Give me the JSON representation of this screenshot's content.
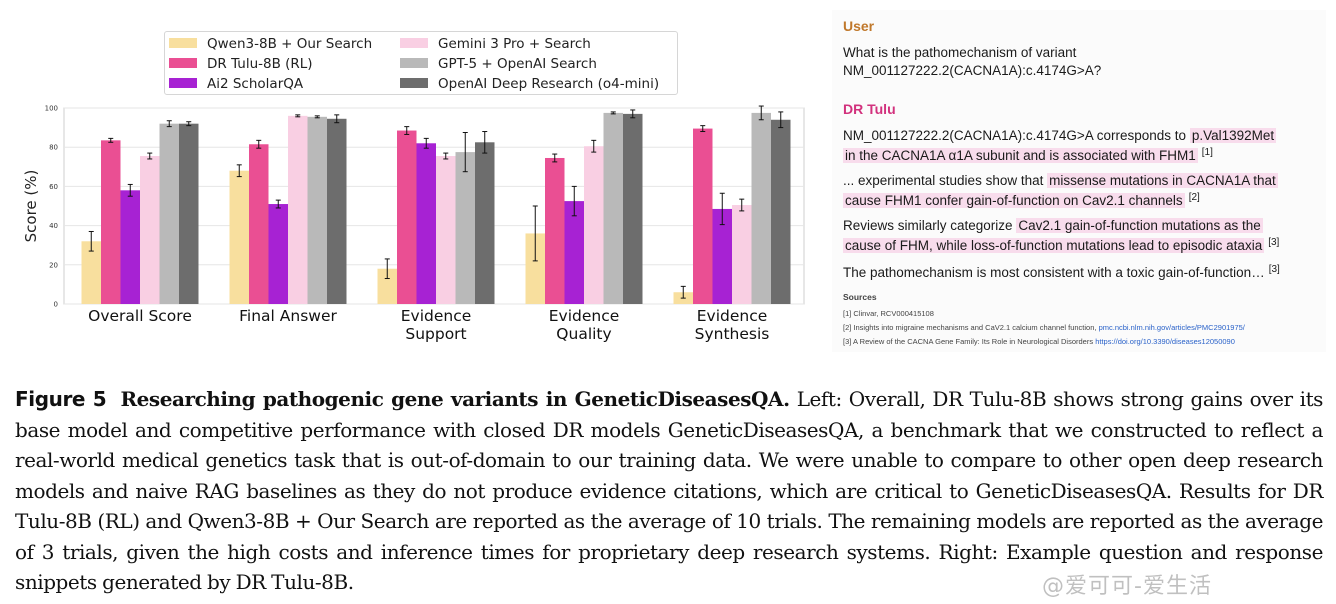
{
  "chart_data": {
    "type": "bar",
    "categories": [
      "Overall Score",
      "Final Answer",
      "Evidence\nSupport",
      "Evidence\nQuality",
      "Evidence\nSynthesis"
    ],
    "ylabel": "Score (%)",
    "ylim": [
      0,
      100
    ],
    "yticks": [
      0,
      20,
      40,
      60,
      80,
      100
    ],
    "grid": true,
    "legend_placement": "top-center",
    "series": [
      {
        "name": "Qwen3-8B + Our Search",
        "color": "#f8df9e",
        "values": [
          32,
          68,
          18,
          36,
          6
        ],
        "errors": [
          5,
          3,
          5,
          14,
          3
        ]
      },
      {
        "name": "DR Tulu-8B (RL)",
        "color": "#ea4f93",
        "values": [
          83.5,
          81.5,
          88.5,
          74.5,
          89.5
        ],
        "errors": [
          1,
          2,
          2,
          2,
          1.5
        ]
      },
      {
        "name": "Ai2 ScholarQA",
        "color": "#a722d3",
        "values": [
          58,
          51,
          82,
          52.5,
          48.5
        ],
        "errors": [
          3,
          2,
          2.5,
          7.5,
          8
        ]
      },
      {
        "name": "Gemini 3 Pro + Search",
        "color": "#f9cfe3",
        "values": [
          75.5,
          96,
          75.5,
          80.5,
          50.5
        ],
        "errors": [
          1.5,
          0.5,
          1.5,
          3,
          3
        ]
      },
      {
        "name": "GPT-5 + OpenAI Search",
        "color": "#b9b9b9",
        "values": [
          92,
          95.5,
          77.5,
          97.5,
          97.5
        ],
        "errors": [
          1.5,
          0.5,
          10,
          0.5,
          3.5
        ]
      },
      {
        "name": "OpenAI Deep Research (o4-mini)",
        "color": "#6d6d6d",
        "values": [
          92,
          94.5,
          82.5,
          97,
          94
        ],
        "errors": [
          1,
          2,
          5.5,
          2,
          4
        ]
      }
    ]
  },
  "panel": {
    "user_label": "User",
    "user_color": "#c0782b",
    "question_line1": "What is the pathomechanism of variant",
    "question_line2": "NM_001127222.2(CACNA1A):c.4174G>A?",
    "model_label": "DR Tulu",
    "model_color": "#d2317d",
    "p1_pre": "NM_001127222.2(CACNA1A):c.4174G>A corresponds to",
    "p1_hl1": "p.Val1392Met",
    "p1_hl2": "in the CACNA1A α1A subunit and is associated with FHM1",
    "p1_cite": "[1]",
    "p2_pre": "... experimental studies show that",
    "p2_hl1": "missense mutations in CACNA1A that",
    "p2_hl2": "cause FHM1 confer gain-of-function on Cav2.1 channels",
    "p2_cite": "[2]",
    "p3_pre": "Reviews similarly categorize",
    "p3_hl1": "Cav2.1 gain-of-function mutations as the",
    "p3_hl2": "cause of FHM, while loss-of-function mutations lead to episodic ataxia",
    "p3_cite": "[3]",
    "p4_text": "The pathomechanism is most consistent with a toxic gain-of-function…",
    "p4_cite": "[3]",
    "sources_title": "Sources",
    "src1": "[1] Clinvar, RCV000415108",
    "src2_text": "[2] Insights into migraine mechanisms and CaV2.1 calcium channel function,",
    "src2_link": "pmc.ncbi.nlm.nih.gov/articles/PMC2901975/",
    "src3_text": "[3] A Review of the CACNA Gene Family: Its Role in Neurological Disorders",
    "src3_link": "https://doi.org/10.3390/diseases12050090"
  },
  "caption": {
    "fig_label": "Figure 5",
    "title": "Researching pathogenic gene variants in GeneticDiseasesQA.",
    "body": "Left: Overall, DR Tulu-8B shows strong gains over its base model and competitive performance with closed DR models GeneticDiseasesQA, a benchmark that we constructed to reflect a real-world medical genetics task that is out-of-domain to our training data. We were unable to compare to other open deep research models and naive RAG baselines as they do not produce evidence citations, which are critical to GeneticDiseasesQA. Results for DR Tulu-8B (RL) and Qwen3-8B + Our Search are reported as the average of 10 trials. The remaining models are reported as the average of 3 trials, given the high costs and inference times for proprietary deep research systems. Right: Example question and response snippets generated by DR Tulu-8B.",
    "watermark": "@爱可可-爱生活"
  }
}
